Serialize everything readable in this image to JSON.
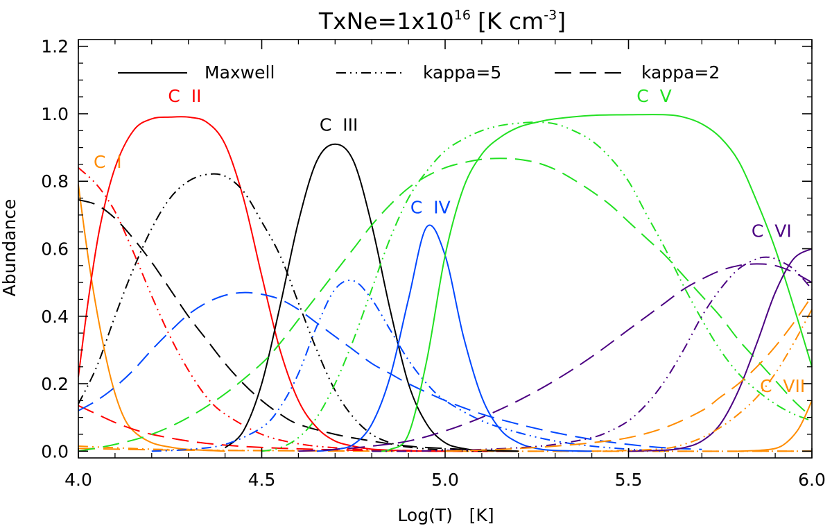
{
  "chart_data": {
    "type": "line",
    "title": "TxNe=1x10",
    "title_sup": "16",
    "title_unit_open": "[K cm",
    "title_unit_sup": "-3",
    "title_unit_close": "]",
    "xlabel": "Log(T)   [K]",
    "ylabel": "Abundance",
    "xlim": [
      4.0,
      6.0
    ],
    "ylim": [
      -0.02,
      1.22
    ],
    "xticks": [
      4.0,
      4.5,
      5.0,
      5.5,
      6.0
    ],
    "xtick_labels": [
      "4.0",
      "4.5",
      "5.0",
      "5.5",
      "6.0"
    ],
    "yticks": [
      0.0,
      0.2,
      0.4,
      0.6,
      0.8,
      1.0,
      1.2
    ],
    "ytick_labels": [
      "0.0",
      "0.2",
      "0.4",
      "0.6",
      "0.8",
      "1.0",
      "1.2"
    ],
    "legend": [
      {
        "label": "Maxwell",
        "style": "solid"
      },
      {
        "label": "kappa=5",
        "style": "dashdotdot"
      },
      {
        "label": "kappa=2",
        "style": "dashed"
      }
    ],
    "legend_position": "top",
    "ion_labels": [
      {
        "text": "C  I",
        "color": "#ff8c00",
        "x": 4.08,
        "y": 0.84
      },
      {
        "text": "C  II",
        "color": "#ff0000",
        "x": 4.29,
        "y": 1.035
      },
      {
        "text": "C  III",
        "color": "#000000",
        "x": 4.71,
        "y": 0.95
      },
      {
        "text": "C  IV",
        "color": "#0047ff",
        "x": 4.96,
        "y": 0.705
      },
      {
        "text": "C  V",
        "color": "#22e022",
        "x": 5.57,
        "y": 1.035
      },
      {
        "text": "C  VI",
        "color": "#4b0082",
        "x": 5.89,
        "y": 0.635
      },
      {
        "text": "C  VII",
        "color": "#ff8c00",
        "x": 5.92,
        "y": 0.175
      }
    ],
    "series": [
      {
        "name": "C I Maxwell",
        "color": "#ff8c00",
        "style": "solid",
        "x": [
          4.0,
          4.03,
          4.06,
          4.09,
          4.12,
          4.15,
          4.2,
          4.25,
          4.3,
          4.4
        ],
        "y": [
          0.79,
          0.55,
          0.36,
          0.21,
          0.11,
          0.06,
          0.025,
          0.012,
          0.005,
          0.0
        ]
      },
      {
        "name": "C I kappa=5",
        "color": "#ff8c00",
        "style": "dashdotdot",
        "x": [
          4.0,
          4.1,
          4.2,
          4.3,
          4.5,
          5.0,
          6.0
        ],
        "y": [
          0.015,
          0.01,
          0.006,
          0.004,
          0.002,
          0.0,
          0.0
        ]
      },
      {
        "name": "C I kappa=2",
        "color": "#ff8c00",
        "style": "dashed",
        "x": [
          4.0,
          4.1,
          4.2,
          4.4,
          4.6,
          5.0,
          6.0
        ],
        "y": [
          0.008,
          0.006,
          0.004,
          0.002,
          0.001,
          0.0,
          0.0
        ]
      },
      {
        "name": "C II Maxwell",
        "color": "#ff0000",
        "style": "solid",
        "x": [
          4.0,
          4.03,
          4.06,
          4.1,
          4.15,
          4.2,
          4.25,
          4.3,
          4.35,
          4.4,
          4.45,
          4.5,
          4.55,
          4.6,
          4.65,
          4.7,
          4.75,
          4.8,
          4.9,
          5.0
        ],
        "y": [
          0.22,
          0.47,
          0.67,
          0.84,
          0.95,
          0.985,
          0.99,
          0.99,
          0.975,
          0.91,
          0.75,
          0.52,
          0.3,
          0.15,
          0.07,
          0.03,
          0.015,
          0.006,
          0.001,
          0.0
        ]
      },
      {
        "name": "C II kappa=5",
        "color": "#ff0000",
        "style": "dashdotdot",
        "x": [
          4.0,
          4.05,
          4.1,
          4.15,
          4.2,
          4.25,
          4.3,
          4.35,
          4.4,
          4.5,
          4.6,
          4.7,
          4.8,
          4.9,
          5.0
        ],
        "y": [
          0.84,
          0.79,
          0.71,
          0.59,
          0.46,
          0.34,
          0.24,
          0.16,
          0.11,
          0.05,
          0.022,
          0.01,
          0.004,
          0.002,
          0.0
        ]
      },
      {
        "name": "C II kappa=2",
        "color": "#ff0000",
        "style": "dashed",
        "x": [
          4.0,
          4.05,
          4.1,
          4.15,
          4.2,
          4.3,
          4.4,
          4.5,
          4.6,
          4.7,
          4.8,
          4.9,
          5.0,
          5.2
        ],
        "y": [
          0.135,
          0.11,
          0.085,
          0.065,
          0.05,
          0.03,
          0.018,
          0.011,
          0.007,
          0.004,
          0.002,
          0.001,
          0.0,
          0.0
        ]
      },
      {
        "name": "C III Maxwell",
        "color": "#000000",
        "style": "solid",
        "x": [
          4.4,
          4.45,
          4.5,
          4.55,
          4.6,
          4.65,
          4.7,
          4.75,
          4.8,
          4.85,
          4.9,
          4.95,
          5.0,
          5.05,
          5.1,
          5.2
        ],
        "y": [
          0.01,
          0.06,
          0.2,
          0.43,
          0.68,
          0.86,
          0.91,
          0.86,
          0.67,
          0.42,
          0.2,
          0.08,
          0.025,
          0.008,
          0.002,
          0.0
        ]
      },
      {
        "name": "C III kappa=5",
        "color": "#000000",
        "style": "dashdotdot",
        "x": [
          4.0,
          4.05,
          4.1,
          4.15,
          4.2,
          4.25,
          4.3,
          4.35,
          4.4,
          4.45,
          4.5,
          4.55,
          4.6,
          4.65,
          4.7,
          4.75,
          4.8,
          4.85,
          4.9,
          5.0,
          5.1
        ],
        "y": [
          0.14,
          0.25,
          0.4,
          0.54,
          0.66,
          0.75,
          0.8,
          0.82,
          0.815,
          0.77,
          0.68,
          0.58,
          0.44,
          0.3,
          0.18,
          0.1,
          0.05,
          0.025,
          0.012,
          0.003,
          0.0
        ]
      },
      {
        "name": "C III kappa=2",
        "color": "#000000",
        "style": "dashed",
        "x": [
          4.0,
          4.05,
          4.1,
          4.15,
          4.2,
          4.25,
          4.3,
          4.35,
          4.4,
          4.45,
          4.5,
          4.55,
          4.6,
          4.7,
          4.8,
          4.9,
          5.0,
          5.1,
          5.2
        ],
        "y": [
          0.745,
          0.73,
          0.69,
          0.63,
          0.56,
          0.48,
          0.4,
          0.33,
          0.26,
          0.2,
          0.15,
          0.11,
          0.08,
          0.05,
          0.03,
          0.015,
          0.008,
          0.003,
          0.0
        ]
      },
      {
        "name": "C IV Maxwell",
        "color": "#0047ff",
        "style": "solid",
        "x": [
          4.65,
          4.7,
          4.75,
          4.8,
          4.85,
          4.9,
          4.95,
          5.0,
          5.05,
          5.1,
          5.15,
          5.2,
          5.25,
          5.3,
          5.4
        ],
        "y": [
          0.0,
          0.005,
          0.02,
          0.08,
          0.22,
          0.45,
          0.665,
          0.58,
          0.34,
          0.16,
          0.065,
          0.025,
          0.008,
          0.002,
          0.0
        ]
      },
      {
        "name": "C IV kappa=5",
        "color": "#0047ff",
        "style": "dashdotdot",
        "x": [
          4.2,
          4.3,
          4.4,
          4.5,
          4.55,
          4.6,
          4.65,
          4.7,
          4.75,
          4.8,
          4.85,
          4.9,
          4.95,
          5.0,
          5.1,
          5.2,
          5.3,
          5.4,
          5.5,
          5.6
        ],
        "y": [
          0.0,
          0.005,
          0.02,
          0.07,
          0.13,
          0.23,
          0.37,
          0.48,
          0.505,
          0.45,
          0.36,
          0.27,
          0.2,
          0.15,
          0.09,
          0.055,
          0.03,
          0.015,
          0.006,
          0.0
        ]
      },
      {
        "name": "C IV kappa=2",
        "color": "#0047ff",
        "style": "dashed",
        "x": [
          4.0,
          4.05,
          4.1,
          4.15,
          4.2,
          4.25,
          4.3,
          4.35,
          4.4,
          4.45,
          4.5,
          4.55,
          4.6,
          4.65,
          4.7,
          4.75,
          4.8,
          4.85,
          4.9,
          5.0,
          5.1,
          5.2,
          5.3,
          5.4,
          5.5,
          5.6,
          5.7
        ],
        "y": [
          0.12,
          0.15,
          0.19,
          0.24,
          0.3,
          0.355,
          0.405,
          0.44,
          0.462,
          0.47,
          0.465,
          0.45,
          0.42,
          0.38,
          0.34,
          0.3,
          0.26,
          0.23,
          0.2,
          0.15,
          0.11,
          0.08,
          0.055,
          0.035,
          0.02,
          0.01,
          0.005
        ]
      },
      {
        "name": "C V Maxwell",
        "color": "#22e022",
        "style": "solid",
        "x": [
          4.8,
          4.85,
          4.9,
          4.95,
          5.0,
          5.05,
          5.1,
          5.15,
          5.2,
          5.25,
          5.3,
          5.4,
          5.5,
          5.6,
          5.65,
          5.7,
          5.75,
          5.8,
          5.85,
          5.9,
          5.95,
          6.0
        ],
        "y": [
          0.0,
          0.005,
          0.05,
          0.27,
          0.58,
          0.78,
          0.88,
          0.93,
          0.96,
          0.975,
          0.985,
          0.995,
          0.997,
          0.997,
          0.99,
          0.97,
          0.93,
          0.86,
          0.74,
          0.6,
          0.43,
          0.25
        ]
      },
      {
        "name": "C V kappa=5",
        "color": "#22e022",
        "style": "dashdotdot",
        "x": [
          4.5,
          4.55,
          4.6,
          4.65,
          4.7,
          4.75,
          4.8,
          4.85,
          4.9,
          4.95,
          5.0,
          5.05,
          5.1,
          5.15,
          5.2,
          5.25,
          5.3,
          5.35,
          5.4,
          5.45,
          5.5,
          5.55,
          5.6,
          5.65,
          5.7,
          5.75,
          5.8,
          5.85,
          5.9,
          5.95,
          6.0
        ],
        "y": [
          0.0,
          0.01,
          0.04,
          0.1,
          0.2,
          0.33,
          0.48,
          0.63,
          0.75,
          0.83,
          0.89,
          0.925,
          0.95,
          0.965,
          0.972,
          0.975,
          0.97,
          0.95,
          0.92,
          0.87,
          0.8,
          0.7,
          0.6,
          0.49,
          0.39,
          0.3,
          0.23,
          0.18,
          0.14,
          0.11,
          0.09
        ]
      },
      {
        "name": "C V kappa=2",
        "color": "#22e022",
        "style": "dashed",
        "x": [
          4.0,
          4.1,
          4.2,
          4.3,
          4.4,
          4.5,
          4.55,
          4.6,
          4.65,
          4.7,
          4.75,
          4.8,
          4.85,
          4.9,
          4.95,
          5.0,
          5.05,
          5.1,
          5.15,
          5.2,
          5.25,
          5.3,
          5.35,
          5.4,
          5.45,
          5.5,
          5.55,
          5.6,
          5.65,
          5.7,
          5.75,
          5.8,
          5.85,
          5.9,
          5.95,
          6.0
        ],
        "y": [
          0.0,
          0.02,
          0.05,
          0.1,
          0.17,
          0.26,
          0.32,
          0.39,
          0.46,
          0.53,
          0.6,
          0.67,
          0.73,
          0.78,
          0.815,
          0.84,
          0.855,
          0.865,
          0.868,
          0.865,
          0.855,
          0.835,
          0.805,
          0.77,
          0.73,
          0.68,
          0.63,
          0.58,
          0.52,
          0.46,
          0.4,
          0.33,
          0.27,
          0.21,
          0.15,
          0.1
        ]
      },
      {
        "name": "C VI Maxwell",
        "color": "#4b0082",
        "style": "solid",
        "x": [
          5.5,
          5.6,
          5.65,
          5.7,
          5.75,
          5.8,
          5.85,
          5.9,
          5.95,
          6.0
        ],
        "y": [
          0.0,
          0.003,
          0.01,
          0.03,
          0.08,
          0.18,
          0.32,
          0.47,
          0.57,
          0.6
        ]
      },
      {
        "name": "C VI kappa=5",
        "color": "#4b0082",
        "style": "dashdotdot",
        "x": [
          4.8,
          4.9,
          5.0,
          5.1,
          5.2,
          5.3,
          5.4,
          5.45,
          5.5,
          5.55,
          5.6,
          5.65,
          5.7,
          5.75,
          5.8,
          5.85,
          5.88,
          5.9,
          5.95,
          6.0
        ],
        "y": [
          0.0,
          0.0,
          0.002,
          0.005,
          0.01,
          0.02,
          0.04,
          0.06,
          0.09,
          0.14,
          0.21,
          0.3,
          0.4,
          0.48,
          0.54,
          0.57,
          0.575,
          0.57,
          0.54,
          0.48
        ]
      },
      {
        "name": "C VI kappa=2",
        "color": "#4b0082",
        "style": "dashed",
        "x": [
          4.6,
          4.7,
          4.8,
          4.9,
          5.0,
          5.1,
          5.2,
          5.3,
          5.4,
          5.5,
          5.55,
          5.6,
          5.65,
          5.7,
          5.75,
          5.8,
          5.85,
          5.9,
          5.95,
          6.0
        ],
        "y": [
          0.0,
          0.005,
          0.015,
          0.03,
          0.06,
          0.1,
          0.15,
          0.21,
          0.28,
          0.36,
          0.4,
          0.44,
          0.48,
          0.51,
          0.535,
          0.55,
          0.555,
          0.55,
          0.53,
          0.5
        ]
      },
      {
        "name": "C VII Maxwell",
        "color": "#ff8c00",
        "style": "solid",
        "x": [
          5.8,
          5.85,
          5.9,
          5.93,
          5.96,
          5.98,
          6.0
        ],
        "y": [
          0.0,
          0.002,
          0.008,
          0.025,
          0.06,
          0.1,
          0.15
        ]
      },
      {
        "name": "C VII kappa=5",
        "color": "#ff8c00",
        "style": "dashdotdot",
        "x": [
          5.4,
          5.5,
          5.6,
          5.65,
          5.7,
          5.75,
          5.8,
          5.85,
          5.9,
          5.95,
          6.0
        ],
        "y": [
          0.0,
          0.002,
          0.008,
          0.02,
          0.04,
          0.07,
          0.11,
          0.16,
          0.23,
          0.32,
          0.42
        ]
      },
      {
        "name": "C VII kappa=2",
        "color": "#ff8c00",
        "style": "dashed",
        "x": [
          5.0,
          5.1,
          5.2,
          5.3,
          5.4,
          5.5,
          5.6,
          5.7,
          5.75,
          5.8,
          5.85,
          5.9,
          5.95,
          6.0
        ],
        "y": [
          0.0,
          0.003,
          0.008,
          0.015,
          0.025,
          0.04,
          0.07,
          0.12,
          0.16,
          0.2,
          0.25,
          0.31,
          0.38,
          0.46
        ]
      }
    ]
  }
}
